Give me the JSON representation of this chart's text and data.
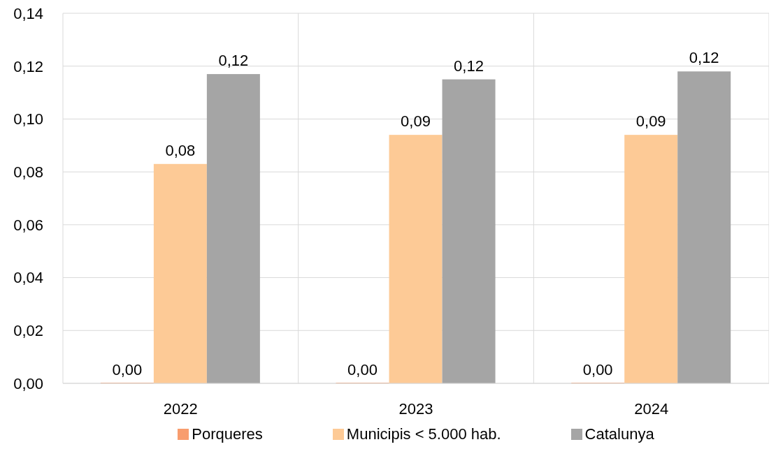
{
  "chart_data": {
    "type": "bar",
    "categories": [
      "2022",
      "2023",
      "2024"
    ],
    "series": [
      {
        "name": "Porqueres",
        "color": "#f89d6e",
        "values": [
          0,
          0,
          0
        ],
        "value_labels": [
          "0,00",
          "0,00",
          "0,00"
        ]
      },
      {
        "name": "Municipis < 5.000 hab.",
        "color": "#fdca96",
        "values": [
          0.083,
          0.094,
          0.094
        ],
        "value_labels": [
          "0,08",
          "0,09",
          "0,09"
        ]
      },
      {
        "name": "Catalunya",
        "color": "#a5a5a5",
        "values": [
          0.117,
          0.115,
          0.118
        ],
        "value_labels": [
          "0,12",
          "0,12",
          "0,12"
        ]
      }
    ],
    "ylim": [
      0,
      0.14
    ],
    "yticks": [
      {
        "value": 0,
        "label": "0,00"
      },
      {
        "value": 0.02,
        "label": "0,02"
      },
      {
        "value": 0.04,
        "label": "0,04"
      },
      {
        "value": 0.06,
        "label": "0,06"
      },
      {
        "value": 0.08,
        "label": "0,08"
      },
      {
        "value": 0.1,
        "label": "0,10"
      },
      {
        "value": 0.12,
        "label": "0,12"
      },
      {
        "value": 0.14,
        "label": "0,14"
      }
    ],
    "grid": true,
    "legend": "bottom"
  }
}
